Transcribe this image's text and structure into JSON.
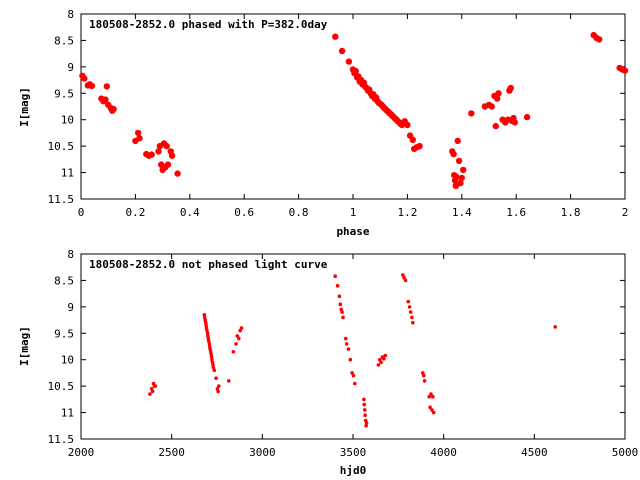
{
  "chart_data": [
    {
      "type": "scatter",
      "title": "180508-2852.0 phased with P=382.0day",
      "xlabel": "phase",
      "ylabel": "I[mag]",
      "xlim": [
        0,
        2
      ],
      "ylim": [
        11.5,
        8
      ],
      "y_inverted": true,
      "grid": false,
      "legend": "none",
      "xticks": [
        "0",
        "0.2",
        "0.4",
        "0.6",
        "0.8",
        "1",
        "1.2",
        "1.4",
        "1.6",
        "1.8",
        "2"
      ],
      "xtick_values": [
        0,
        0.2,
        0.4,
        0.6,
        0.8,
        1,
        1.2,
        1.4,
        1.6,
        1.8,
        2
      ],
      "yticks": [
        "8",
        "8.5",
        "9",
        "9.5",
        "10",
        "10.5",
        "11",
        "11.5"
      ],
      "ytick_values": [
        8,
        8.5,
        9,
        9.5,
        10,
        10.5,
        11,
        11.5
      ],
      "marker_color": "#ff0000",
      "marker_size": "large",
      "points": [
        [
          0.005,
          9.17
        ],
        [
          0.012,
          9.22
        ],
        [
          0.025,
          9.35
        ],
        [
          0.032,
          9.33
        ],
        [
          0.04,
          9.36
        ],
        [
          0.075,
          9.6
        ],
        [
          0.082,
          9.65
        ],
        [
          0.09,
          9.62
        ],
        [
          0.095,
          9.37
        ],
        [
          0.1,
          9.72
        ],
        [
          0.11,
          9.78
        ],
        [
          0.115,
          9.83
        ],
        [
          0.12,
          9.8
        ],
        [
          0.2,
          10.4
        ],
        [
          0.21,
          10.25
        ],
        [
          0.215,
          10.35
        ],
        [
          0.24,
          10.65
        ],
        [
          0.25,
          10.68
        ],
        [
          0.26,
          10.66
        ],
        [
          0.285,
          10.6
        ],
        [
          0.29,
          10.5
        ],
        [
          0.295,
          10.85
        ],
        [
          0.3,
          10.95
        ],
        [
          0.305,
          10.45
        ],
        [
          0.31,
          10.9
        ],
        [
          0.315,
          10.5
        ],
        [
          0.32,
          10.85
        ],
        [
          0.33,
          10.6
        ],
        [
          0.335,
          10.68
        ],
        [
          0.355,
          11.02
        ],
        [
          0.935,
          8.43
        ],
        [
          0.96,
          8.7
        ],
        [
          0.985,
          8.9
        ],
        [
          1.0,
          9.05
        ],
        [
          1.005,
          9.12
        ],
        [
          1.01,
          9.08
        ],
        [
          1.015,
          9.2
        ],
        [
          1.02,
          9.18
        ],
        [
          1.025,
          9.28
        ],
        [
          1.03,
          9.25
        ],
        [
          1.035,
          9.33
        ],
        [
          1.04,
          9.3
        ],
        [
          1.045,
          9.38
        ],
        [
          1.05,
          9.4
        ],
        [
          1.055,
          9.45
        ],
        [
          1.06,
          9.43
        ],
        [
          1.065,
          9.5
        ],
        [
          1.07,
          9.55
        ],
        [
          1.075,
          9.52
        ],
        [
          1.08,
          9.6
        ],
        [
          1.085,
          9.58
        ],
        [
          1.09,
          9.65
        ],
        [
          1.095,
          9.68
        ],
        [
          1.1,
          9.7
        ],
        [
          1.105,
          9.72
        ],
        [
          1.11,
          9.75
        ],
        [
          1.115,
          9.78
        ],
        [
          1.12,
          9.8
        ],
        [
          1.125,
          9.83
        ],
        [
          1.13,
          9.85
        ],
        [
          1.135,
          9.88
        ],
        [
          1.14,
          9.9
        ],
        [
          1.145,
          9.93
        ],
        [
          1.15,
          9.95
        ],
        [
          1.155,
          9.98
        ],
        [
          1.16,
          10.0
        ],
        [
          1.165,
          10.03
        ],
        [
          1.17,
          10.05
        ],
        [
          1.175,
          10.08
        ],
        [
          1.18,
          10.1
        ],
        [
          1.19,
          10.03
        ],
        [
          1.195,
          10.08
        ],
        [
          1.2,
          10.1
        ],
        [
          1.21,
          10.3
        ],
        [
          1.22,
          10.38
        ],
        [
          1.225,
          10.55
        ],
        [
          1.235,
          10.52
        ],
        [
          1.245,
          10.5
        ],
        [
          1.365,
          10.6
        ],
        [
          1.37,
          10.65
        ],
        [
          1.372,
          11.05
        ],
        [
          1.375,
          11.15
        ],
        [
          1.378,
          11.25
        ],
        [
          1.38,
          11.08
        ],
        [
          1.385,
          10.4
        ],
        [
          1.39,
          10.78
        ],
        [
          1.395,
          11.2
        ],
        [
          1.4,
          11.1
        ],
        [
          1.405,
          10.95
        ],
        [
          1.435,
          9.88
        ],
        [
          1.485,
          9.75
        ],
        [
          1.5,
          9.72
        ],
        [
          1.51,
          9.75
        ],
        [
          1.52,
          9.55
        ],
        [
          1.525,
          10.12
        ],
        [
          1.53,
          9.6
        ],
        [
          1.535,
          9.5
        ],
        [
          1.55,
          10.0
        ],
        [
          1.56,
          10.05
        ],
        [
          1.57,
          10.0
        ],
        [
          1.575,
          9.45
        ],
        [
          1.58,
          9.4
        ],
        [
          1.585,
          10.02
        ],
        [
          1.59,
          9.97
        ],
        [
          1.595,
          10.05
        ],
        [
          1.64,
          9.95
        ],
        [
          1.885,
          8.4
        ],
        [
          1.895,
          8.45
        ],
        [
          1.905,
          8.48
        ],
        [
          1.98,
          9.02
        ],
        [
          1.99,
          9.05
        ],
        [
          2.0,
          9.07
        ]
      ]
    },
    {
      "type": "scatter",
      "title": "180508-2852.0 not phased light curve",
      "xlabel": "hjd0",
      "ylabel": "I[mag]",
      "xlim": [
        2000,
        5000
      ],
      "ylim": [
        11.5,
        8
      ],
      "y_inverted": true,
      "grid": false,
      "legend": "none",
      "xticks": [
        "2000",
        "2500",
        "3000",
        "3500",
        "4000",
        "4500",
        "5000"
      ],
      "xtick_values": [
        2000,
        2500,
        3000,
        3500,
        4000,
        4500,
        5000
      ],
      "yticks": [
        "8",
        "8.5",
        "9",
        "9.5",
        "10",
        "10.5",
        "11",
        "11.5"
      ],
      "ytick_values": [
        8,
        8.5,
        9,
        9.5,
        10,
        10.5,
        11,
        11.5
      ],
      "marker_color": "#ff0000",
      "marker_size": "small",
      "points": [
        [
          2380,
          10.65
        ],
        [
          2390,
          10.55
        ],
        [
          2395,
          10.6
        ],
        [
          2400,
          10.45
        ],
        [
          2405,
          10.5
        ],
        [
          2410,
          10.5
        ],
        [
          2680,
          9.15
        ],
        [
          2682,
          9.2
        ],
        [
          2685,
          9.25
        ],
        [
          2688,
          9.3
        ],
        [
          2690,
          9.35
        ],
        [
          2692,
          9.4
        ],
        [
          2695,
          9.45
        ],
        [
          2698,
          9.5
        ],
        [
          2700,
          9.55
        ],
        [
          2702,
          9.6
        ],
        [
          2705,
          9.65
        ],
        [
          2708,
          9.7
        ],
        [
          2710,
          9.75
        ],
        [
          2712,
          9.8
        ],
        [
          2715,
          9.85
        ],
        [
          2718,
          9.9
        ],
        [
          2720,
          9.95
        ],
        [
          2722,
          10.0
        ],
        [
          2725,
          10.05
        ],
        [
          2728,
          10.1
        ],
        [
          2730,
          10.15
        ],
        [
          2735,
          10.2
        ],
        [
          2745,
          10.35
        ],
        [
          2752,
          10.55
        ],
        [
          2756,
          10.6
        ],
        [
          2760,
          10.5
        ],
        [
          2815,
          10.4
        ],
        [
          2840,
          9.85
        ],
        [
          2855,
          9.7
        ],
        [
          2862,
          9.55
        ],
        [
          2870,
          9.6
        ],
        [
          2878,
          9.45
        ],
        [
          2885,
          9.4
        ],
        [
          3402,
          8.42
        ],
        [
          3415,
          8.6
        ],
        [
          3425,
          8.8
        ],
        [
          3430,
          8.95
        ],
        [
          3435,
          9.05
        ],
        [
          3440,
          9.1
        ],
        [
          3445,
          9.2
        ],
        [
          3460,
          9.6
        ],
        [
          3465,
          9.7
        ],
        [
          3475,
          9.8
        ],
        [
          3485,
          10.0
        ],
        [
          3495,
          10.25
        ],
        [
          3502,
          10.3
        ],
        [
          3510,
          10.45
        ],
        [
          3560,
          10.75
        ],
        [
          3562,
          10.85
        ],
        [
          3565,
          10.95
        ],
        [
          3567,
          11.05
        ],
        [
          3570,
          11.15
        ],
        [
          3572,
          11.25
        ],
        [
          3575,
          11.2
        ],
        [
          3640,
          10.1
        ],
        [
          3648,
          10.0
        ],
        [
          3655,
          10.05
        ],
        [
          3662,
          9.95
        ],
        [
          3670,
          9.98
        ],
        [
          3678,
          9.92
        ],
        [
          3775,
          8.4
        ],
        [
          3782,
          8.45
        ],
        [
          3790,
          8.5
        ],
        [
          3805,
          8.9
        ],
        [
          3812,
          9.0
        ],
        [
          3818,
          9.1
        ],
        [
          3825,
          9.2
        ],
        [
          3830,
          9.3
        ],
        [
          3885,
          10.25
        ],
        [
          3890,
          10.3
        ],
        [
          3895,
          10.4
        ],
        [
          3920,
          10.7
        ],
        [
          3925,
          10.9
        ],
        [
          3930,
          10.65
        ],
        [
          3935,
          10.95
        ],
        [
          3940,
          10.7
        ],
        [
          3945,
          11.0
        ],
        [
          4615,
          9.38
        ]
      ]
    }
  ]
}
